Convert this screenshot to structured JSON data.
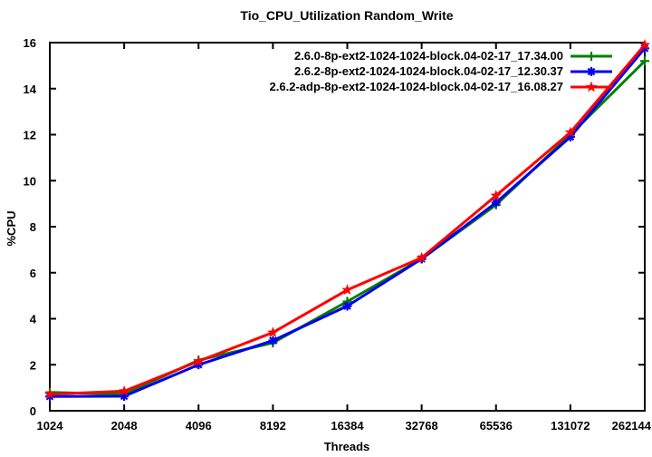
{
  "chart_data": {
    "type": "line",
    "title": "Tio_CPU_Utilization Random_Write",
    "xlabel": "Threads",
    "ylabel": "%CPU",
    "categories": [
      "1024",
      "2048",
      "4096",
      "8192",
      "16384",
      "32768",
      "65536",
      "131072",
      "262144"
    ],
    "x_scale": "categorical-log2",
    "ylim": [
      0,
      16
    ],
    "yticks": [
      0,
      2,
      4,
      6,
      8,
      10,
      12,
      14,
      16
    ],
    "grid": false,
    "legend_position": "top-right-inside",
    "axis_color": "#000000",
    "background_color": "#ffffff",
    "series": [
      {
        "name": "2.6.0-8p-ext2-1024-1024-block.04-02-17_17.34.00",
        "color": "#008000",
        "marker": "plus",
        "values": [
          0.8,
          0.72,
          2.2,
          2.95,
          4.75,
          6.6,
          8.95,
          12.0,
          15.2
        ]
      },
      {
        "name": "2.6.2-8p-ext2-1024-1024-block.04-02-17_12.30.37",
        "color": "#0000ee",
        "marker": "asterisk",
        "values": [
          0.62,
          0.63,
          2.0,
          3.05,
          4.55,
          6.6,
          9.05,
          11.9,
          15.75
        ]
      },
      {
        "name": "2.6.2-adp-8p-ext2-1024-1024-block.04-02-17_16.08.27",
        "color": "#ff0000",
        "marker": "filled-star",
        "values": [
          0.72,
          0.85,
          2.15,
          3.4,
          5.25,
          6.65,
          9.35,
          12.1,
          15.9
        ]
      }
    ]
  }
}
